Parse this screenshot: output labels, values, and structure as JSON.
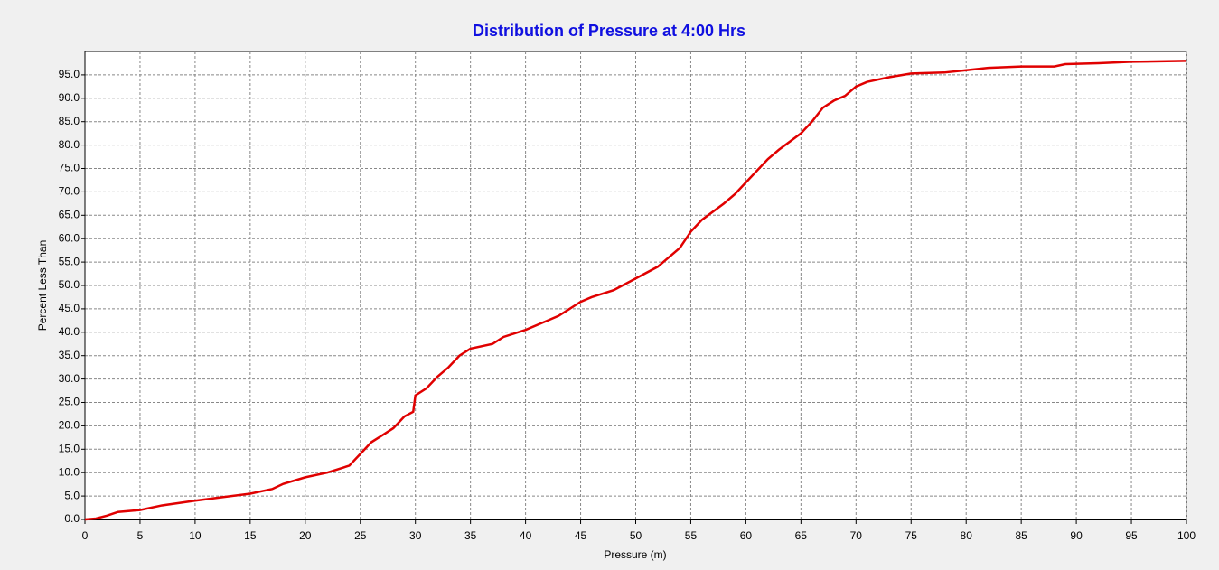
{
  "chart_data": {
    "type": "line",
    "title": "Distribution of Pressure at 4:00 Hrs",
    "x_label": "Pressure (m)",
    "y_label": "Percent Less Than",
    "x": [
      0,
      1,
      2,
      3,
      5,
      7,
      10,
      12,
      15,
      17,
      18,
      20,
      22,
      24,
      25,
      26,
      27,
      28,
      29,
      29.8,
      30,
      31,
      32,
      33,
      34,
      35,
      37,
      38,
      40,
      42,
      43,
      44,
      45,
      46,
      48,
      50,
      52,
      53,
      54,
      55,
      56,
      58,
      59,
      60,
      62,
      63,
      65,
      66,
      67,
      68,
      69,
      70,
      71,
      73,
      75,
      78,
      80,
      82,
      85,
      88,
      89,
      92,
      95,
      100
    ],
    "values": [
      0,
      0.2,
      0.8,
      1.6,
      2,
      3,
      4,
      4.6,
      5.5,
      6.5,
      7.6,
      9,
      10,
      11.5,
      14,
      16.5,
      18,
      19.5,
      22,
      23,
      26.5,
      28,
      30.5,
      32.5,
      35,
      36.5,
      37.5,
      39,
      40.5,
      42.5,
      43.5,
      45,
      46.5,
      47.5,
      49,
      51.5,
      54,
      56,
      58,
      61.5,
      64,
      67.5,
      69.5,
      72,
      77,
      79,
      82.5,
      85,
      88,
      89.5,
      90.5,
      92.5,
      93.5,
      94.5,
      95.3,
      95.5,
      96,
      96.5,
      96.8,
      96.8,
      97.3,
      97.5,
      97.8,
      98
    ],
    "color": "#e00000",
    "xlim": [
      0,
      100
    ],
    "xticks": [
      0,
      5,
      10,
      15,
      20,
      25,
      30,
      35,
      40,
      45,
      50,
      55,
      60,
      65,
      70,
      75,
      80,
      85,
      90,
      95,
      100
    ],
    "ylim": [
      0,
      100
    ],
    "yticks": [
      {
        "value": 0,
        "label": "0.0"
      },
      {
        "value": 5,
        "label": "5.0"
      },
      {
        "value": 10,
        "label": "10.0"
      },
      {
        "value": 15,
        "label": "15.0"
      },
      {
        "value": 20,
        "label": "20.0"
      },
      {
        "value": 25,
        "label": "25.0"
      },
      {
        "value": 30,
        "label": "30.0"
      },
      {
        "value": 35,
        "label": "35.0"
      },
      {
        "value": 40,
        "label": "40.0"
      },
      {
        "value": 45,
        "label": "45.0"
      },
      {
        "value": 50,
        "label": "50.0"
      },
      {
        "value": 55,
        "label": "55.0"
      },
      {
        "value": 60,
        "label": "60.0"
      },
      {
        "value": 65,
        "label": "65.0"
      },
      {
        "value": 70,
        "label": "70.0"
      },
      {
        "value": 75,
        "label": "75.0"
      },
      {
        "value": 80,
        "label": "80.0"
      },
      {
        "value": 85,
        "label": "85.0"
      },
      {
        "value": 90,
        "label": "90.0"
      },
      {
        "value": 95,
        "label": "95.0"
      }
    ],
    "grid": true
  }
}
